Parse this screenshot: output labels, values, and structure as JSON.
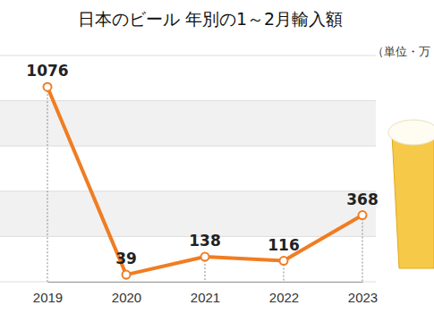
{
  "chart_data": {
    "type": "line",
    "title": "日本のビール 年別の1～2月輸入額",
    "subtitle": "（単位・万",
    "categories": [
      "2019",
      "2020",
      "2021",
      "2022",
      "2023"
    ],
    "values": [
      1076,
      39,
      138,
      116,
      368
    ],
    "color": "#f07d22",
    "ylim": [
      0,
      1250
    ],
    "yticks": [
      0,
      250,
      500,
      750,
      1000,
      1250
    ],
    "grid": true,
    "data_labels": true,
    "tick_labels": "x",
    "marker": "circle"
  }
}
